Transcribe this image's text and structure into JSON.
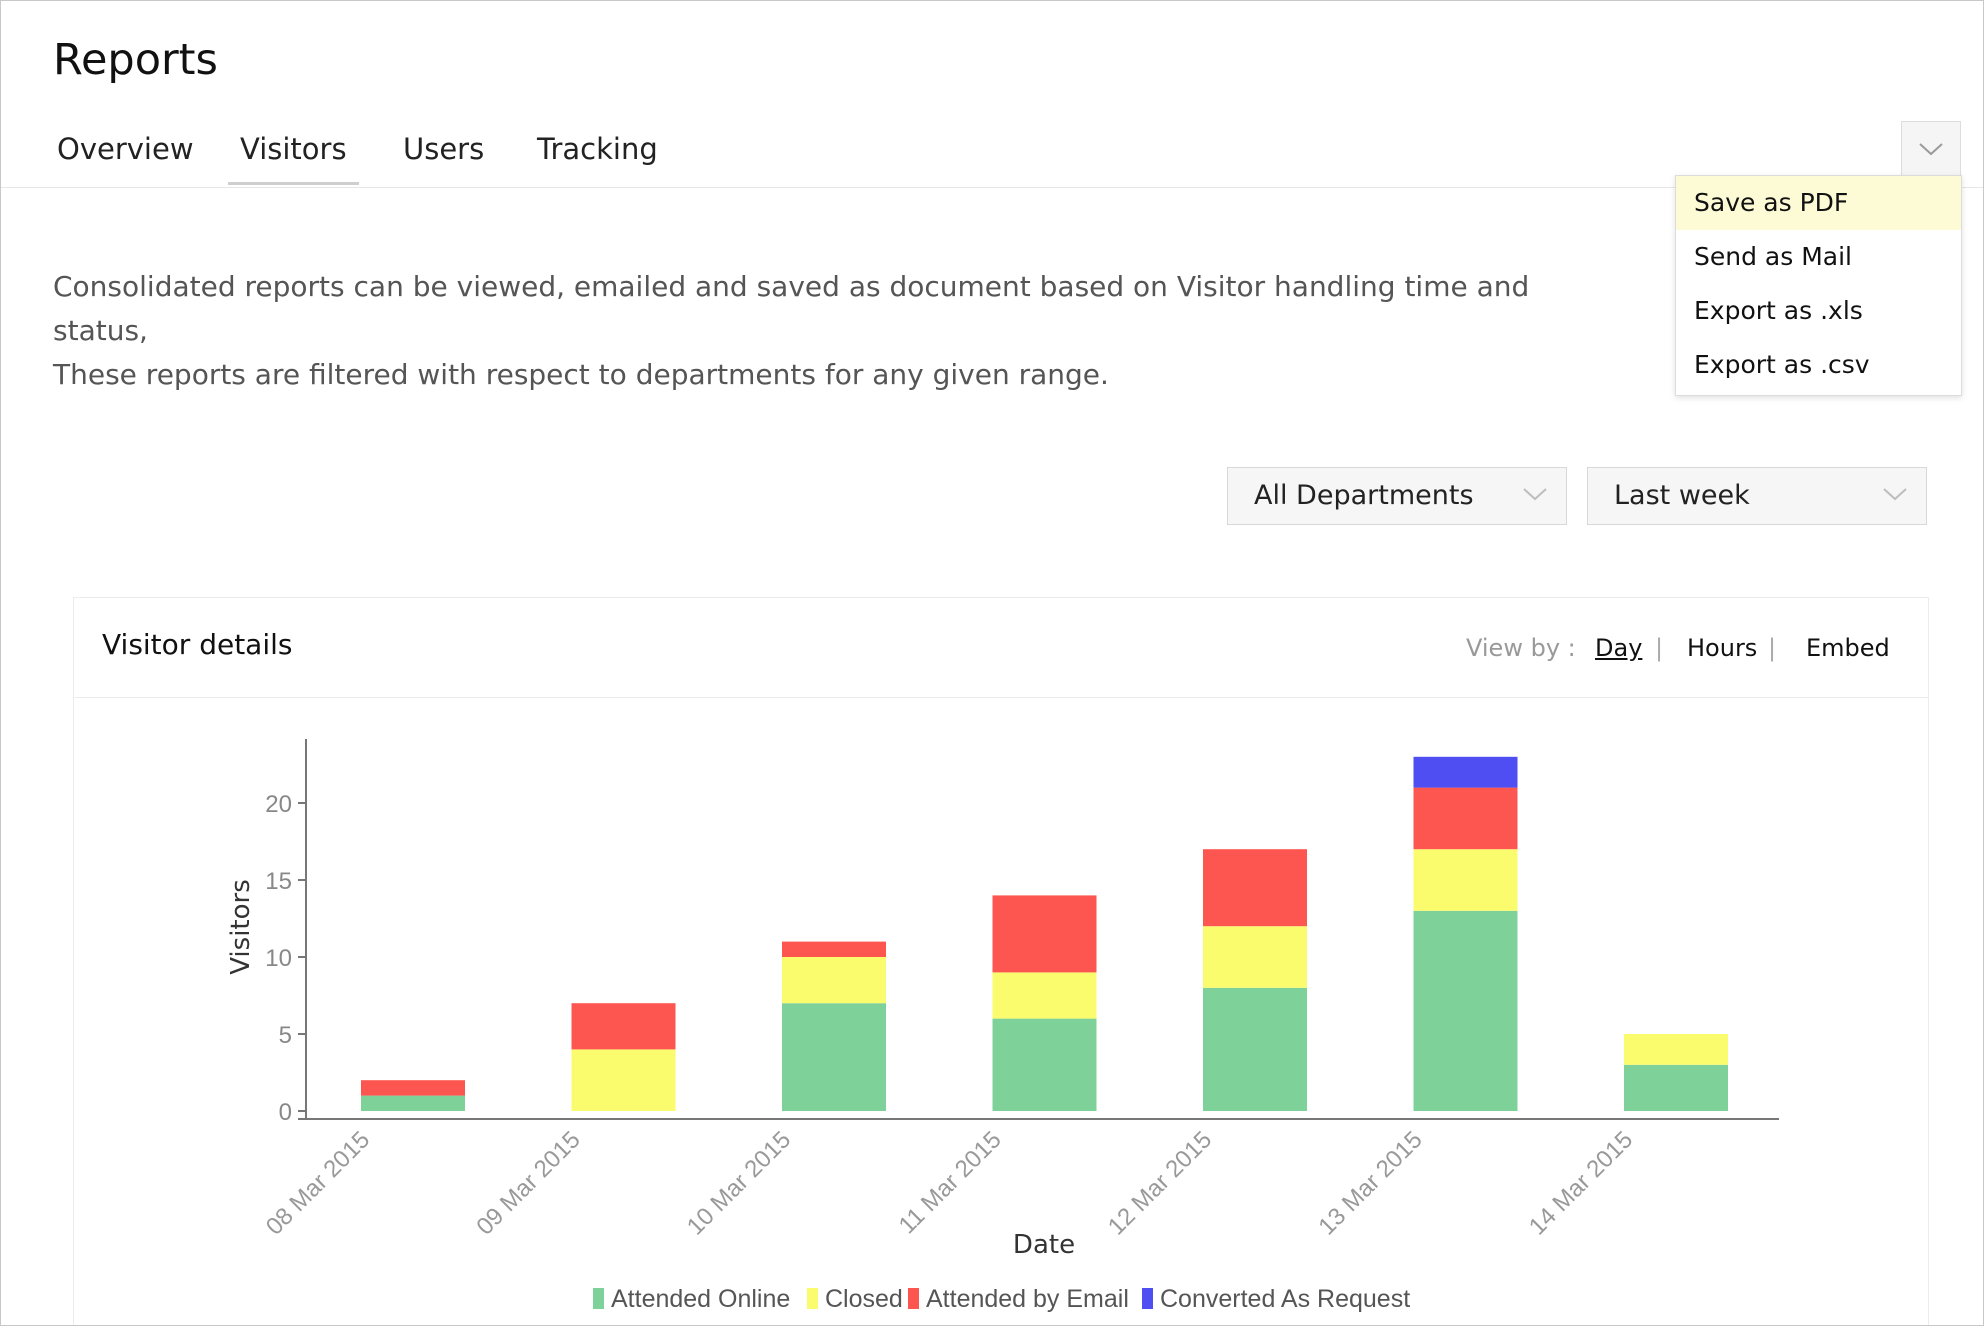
{
  "page": {
    "title": "Reports"
  },
  "tabs": [
    {
      "label": "Overview",
      "active": false
    },
    {
      "label": "Visitors",
      "active": true
    },
    {
      "label": "Users",
      "active": false
    },
    {
      "label": "Tracking",
      "active": false
    }
  ],
  "export_menu": {
    "toggle_icon": "chevron-down-icon",
    "items": [
      {
        "label": "Save as PDF",
        "highlighted": true
      },
      {
        "label": "Send as Mail",
        "highlighted": false
      },
      {
        "label": "Export as .xls",
        "highlighted": false
      },
      {
        "label": "Export as .csv",
        "highlighted": false
      }
    ]
  },
  "description": {
    "line1": "Consolidated reports can be viewed, emailed and saved as document based on Visitor handling time and status,",
    "line2": "These reports are filtered with respect to departments for any given range."
  },
  "filters": {
    "department": {
      "value": "All Departments"
    },
    "range": {
      "value": "Last week"
    }
  },
  "panel": {
    "title": "Visitor details",
    "view_by_label": "View by :",
    "view_by_options": [
      {
        "label": "Day",
        "active": true
      },
      {
        "label": "Hours",
        "active": false
      },
      {
        "label": "Embed",
        "active": false
      }
    ],
    "separator": "|"
  },
  "colors": {
    "attended_online": "#7fd19a",
    "closed": "#fbfb6e",
    "attended_by_email": "#fd5650",
    "converted_as_request": "#4e4ef2",
    "axis": "#777777"
  },
  "chart_data": {
    "type": "bar",
    "stacked": true,
    "xlabel": "Date",
    "ylabel": "Visitors",
    "ylim": [
      0,
      24
    ],
    "yticks": [
      0,
      5,
      10,
      15,
      20
    ],
    "categories": [
      "08 Mar 2015",
      "09 Mar 2015",
      "10 Mar 2015",
      "11 Mar 2015",
      "12 Mar 2015",
      "13 Mar 2015",
      "14 Mar 2015"
    ],
    "series": [
      {
        "name": "Attended Online",
        "color": "#7fd19a",
        "values": [
          1,
          0,
          7,
          6,
          8,
          13,
          3
        ]
      },
      {
        "name": "Closed",
        "color": "#fbfb6e",
        "values": [
          0,
          4,
          3,
          3,
          4,
          4,
          2
        ]
      },
      {
        "name": "Attended by Email",
        "color": "#fd5650",
        "values": [
          1,
          3,
          1,
          5,
          5,
          4,
          0
        ]
      },
      {
        "name": "Converted As Request",
        "color": "#4e4ef2",
        "values": [
          0,
          0,
          0,
          0,
          0,
          2,
          0
        ]
      }
    ],
    "legend_position": "bottom-center",
    "grid": false
  }
}
